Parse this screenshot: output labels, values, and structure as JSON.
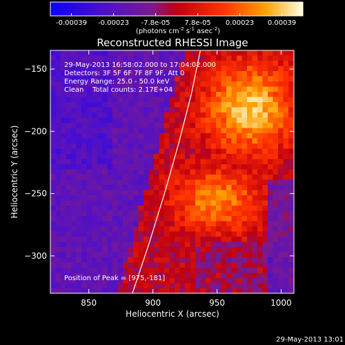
{
  "chart_data": {
    "type": "heatmap",
    "title": "Reconstructed RHESSI Image",
    "xlabel": "Heliocentric X (arcsec)",
    "ylabel": "Heliocentric Y (arcsec)",
    "xlim": [
      820,
      1010
    ],
    "ylim": [
      -330,
      -135
    ],
    "x_ticks": [
      850,
      900,
      950,
      1000
    ],
    "y_ticks": [
      -150,
      -200,
      -250,
      -300
    ],
    "colorbar": {
      "ticks": [
        "-0.00039",
        "-0.00023",
        "-7.8e-05",
        "7.8e-05",
        "0.00023",
        "0.00039"
      ],
      "range": [
        -0.00039,
        0.00039
      ],
      "units_prefix": "(photons cm",
      "units_sup1": "-2",
      "units_mid1": " s",
      "units_sup2": "-1",
      "units_mid2": " asec",
      "units_sup3": "-2",
      "units_suffix": ")"
    },
    "info_lines": [
      "29-May-2013 16:58:02.000 to 17:04:02.000",
      "Detectors: 3F 5F 6F 7F 8F 9F, Att 0",
      "Energy Range: 25.0 - 50.0 keV",
      "Clean    Total counts: 2.17E+04"
    ],
    "peak_label": "Position of Peak = [975,-181]",
    "peak": [
      975,
      -181
    ],
    "limb_curve": [
      [
        884,
        -330
      ],
      [
        897,
        -290
      ],
      [
        909,
        -250
      ],
      [
        920,
        -210
      ],
      [
        930,
        -170
      ],
      [
        937,
        -135
      ]
    ],
    "timestamp": "29-May-2013 13:01"
  }
}
